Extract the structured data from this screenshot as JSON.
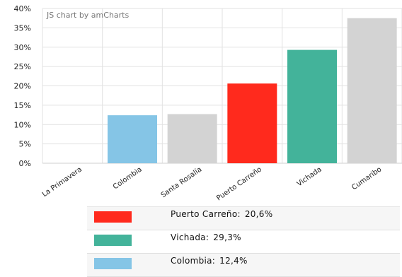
{
  "chart_data": {
    "type": "bar",
    "watermark": "JS chart by amCharts",
    "categories": [
      "La Primavera",
      "Colombia",
      "Santa Rosalía",
      "Puerto Carreño",
      "Vichada",
      "Cumaribo"
    ],
    "values": [
      0,
      12.4,
      12.7,
      20.6,
      29.3,
      37.5
    ],
    "bar_colors": [
      "#d3d3d3",
      "#85c5e6",
      "#d3d3d3",
      "#ff2a1d",
      "#43b39a",
      "#d3d3d3"
    ],
    "ylim": [
      0,
      40
    ],
    "yticks": [
      0,
      5,
      10,
      15,
      20,
      25,
      30,
      35,
      40
    ],
    "ytick_labels": [
      "0%",
      "5%",
      "10%",
      "15%",
      "20%",
      "25%",
      "30%",
      "35%",
      "40%"
    ],
    "grid": true
  },
  "legend": [
    {
      "label": "Puerto Carreño:",
      "value": "20,6%",
      "color": "#ff2a1d"
    },
    {
      "label": "Vichada:",
      "value": "29,3%",
      "color": "#43b39a"
    },
    {
      "label": "Colombia:",
      "value": "12,4%",
      "color": "#85c5e6"
    }
  ]
}
